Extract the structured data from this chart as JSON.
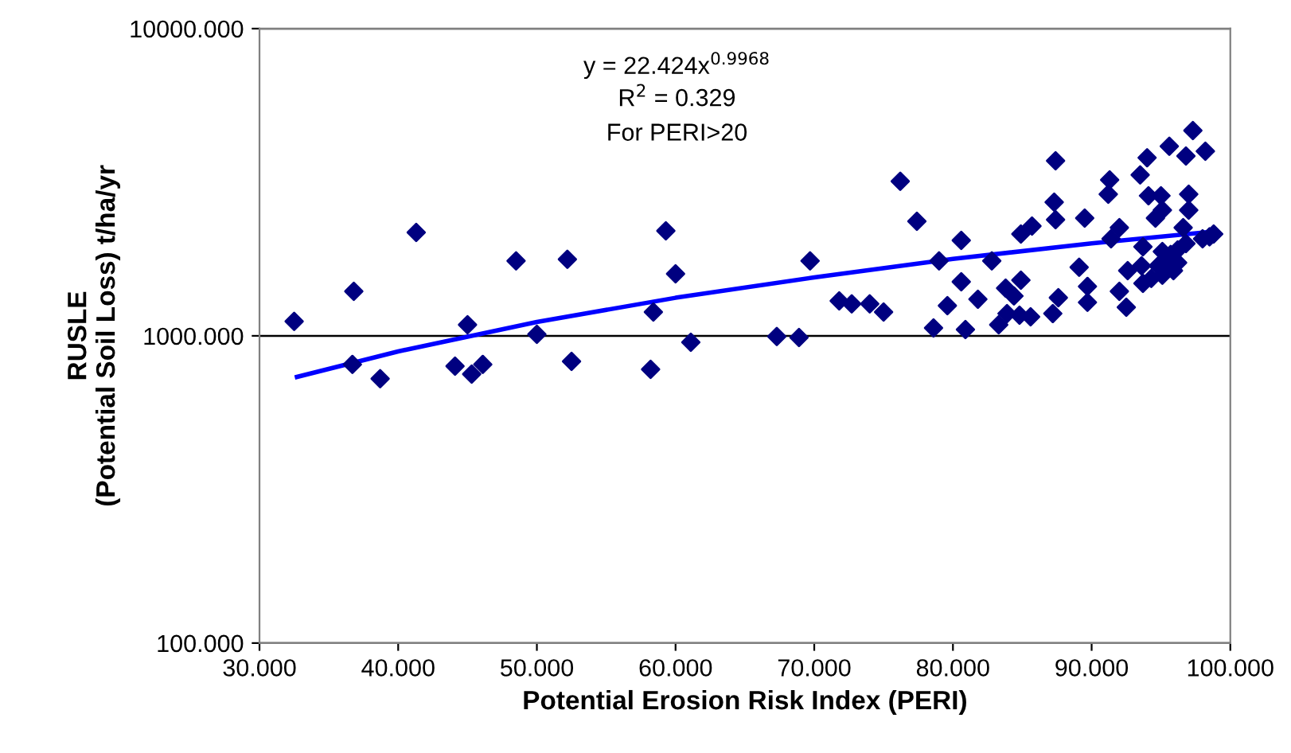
{
  "chart_data": {
    "type": "scatter",
    "xlabel": "Potential Erosion Risk Index (PERI)",
    "ylabel": "RUSLE\n(Potential Soil Loss) t/ha/yr",
    "annotations": [
      "y = 22.424x$^{0.9968}$",
      "R$^{2}$ = 0.329",
      "For PERI>20"
    ],
    "log": "y",
    "grid": "y",
    "marker": "diamond",
    "xlim": [
      30,
      100
    ],
    "xticks": [
      {
        "value": 30,
        "label": "30.000"
      },
      {
        "value": 40,
        "label": "40.000"
      },
      {
        "value": 50,
        "label": "50.000"
      },
      {
        "value": 60,
        "label": "60.000"
      },
      {
        "value": 70,
        "label": "70.000"
      },
      {
        "value": 80,
        "label": "80.000"
      },
      {
        "value": 90,
        "label": "90.000"
      },
      {
        "value": 100,
        "label": "100.000"
      }
    ],
    "ylim": [
      100,
      10000
    ],
    "yticks": [
      {
        "value": 100,
        "label": "100.000"
      },
      {
        "value": 1000,
        "label": "1000.000"
      },
      {
        "value": 10000,
        "label": "10000.000"
      }
    ],
    "series": [
      {
        "color": "#000080",
        "x": [
          32.5,
          36.8,
          36.7,
          38.7,
          41.3,
          44.1,
          45.0,
          45.3,
          46.1,
          48.5,
          50.0,
          52.2,
          52.5,
          58.2,
          58.4,
          59.3,
          60.0,
          61.1,
          67.3,
          68.9,
          69.7,
          71.8,
          72.7,
          74.0,
          75.0,
          76.2,
          77.4,
          78.6,
          79.0,
          79.6,
          80.6,
          80.6,
          80.9,
          81.8,
          82.8,
          83.3,
          83.8,
          84.4,
          83.9,
          84.8,
          84.9,
          84.9,
          85.7,
          85.6,
          97.3,
          87.4,
          95.6,
          98.2,
          96.8,
          94.0,
          93.5,
          91.3,
          91.2,
          87.3,
          94.1,
          95.0,
          97.0,
          95.1,
          94.6,
          97.0,
          87.4,
          89.5,
          92.0,
          91.4,
          96.6,
          98.8,
          93.7,
          95.1,
          96.2,
          96.8,
          89.1,
          92.6,
          93.6,
          94.8,
          95.4,
          96.2,
          94.3,
          95.1,
          95.9,
          89.7,
          92.0,
          93.7,
          87.6,
          89.7,
          92.5,
          87.2,
          98.5,
          98.0,
          95.7
        ],
        "values": [
          1114,
          1396,
          807,
          725,
          2172,
          797,
          1087,
          751,
          807,
          1753,
          1012,
          1774,
          826,
          778,
          1196,
          2198,
          1592,
          953,
          995,
          988,
          1753,
          1300,
          1270,
          1270,
          1196,
          3184,
          2361,
          1061,
          1753,
          1254,
          2046,
          1500,
          1049,
          1316,
          1753,
          1087,
          1430,
          1348,
          1182,
          1167,
          1518,
          2146,
          2278,
          1154,
          4660,
          3715,
          4140,
          3990,
          3850,
          3800,
          3340,
          3220,
          2890,
          2723,
          2858,
          2858,
          2890,
          2566,
          2417,
          2566,
          2388,
          2417,
          2249,
          2070,
          2249,
          2146,
          1950,
          1882,
          1905,
          1998,
          1671,
          1631,
          1690,
          1690,
          1690,
          1730,
          1537,
          1574,
          1631,
          1448,
          1396,
          1482,
          1331,
          1285,
          1239,
          1182,
          2100,
          2070,
          1840
        ]
      },
      {
        "type": "line",
        "color": "#0000ff",
        "marker": "none",
        "x": [
          32.7,
          40,
          50,
          60,
          70,
          80,
          90,
          99
        ],
        "values": [
          735,
          890,
          1110,
          1330,
          1550,
          1780,
          2000,
          2190
        ]
      }
    ]
  }
}
